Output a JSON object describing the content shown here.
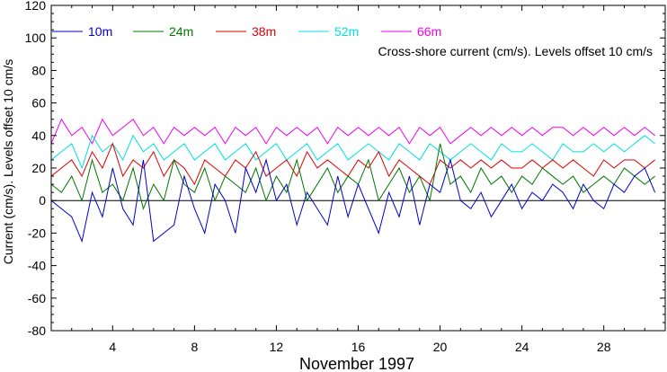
{
  "chart_data": {
    "type": "line",
    "annotation": "Cross-shore current (cm/s). Levels offset 10 cm/s",
    "xlabel": "November 1997",
    "ylabel": "Current (cm/s). Levels offset 10 cm/s",
    "xlim": [
      1,
      31
    ],
    "ylim": [
      -80,
      120
    ],
    "x_ticks": [
      4,
      8,
      12,
      16,
      20,
      24,
      28
    ],
    "y_ticks": [
      -80,
      -60,
      -40,
      -20,
      0,
      20,
      40,
      60,
      80,
      100,
      120
    ],
    "zero_line": 0,
    "x": [
      1,
      1.5,
      2,
      2.5,
      3,
      3.5,
      4,
      4.5,
      5,
      5.5,
      6,
      6.5,
      7,
      7.5,
      8,
      8.5,
      9,
      9.5,
      10,
      10.5,
      11,
      11.5,
      12,
      12.5,
      13,
      13.5,
      14,
      14.5,
      15,
      15.5,
      16,
      16.5,
      17,
      17.5,
      18,
      18.5,
      19,
      19.5,
      20,
      20.5,
      21,
      21.5,
      22,
      22.5,
      23,
      23.5,
      24,
      24.5,
      25,
      25.5,
      26,
      26.5,
      27,
      27.5,
      28,
      28.5,
      29,
      29.5,
      30,
      30.5
    ],
    "series": [
      {
        "name": "10m",
        "color": "#0000cc",
        "values": [
          0,
          -5,
          -10,
          -25,
          5,
          -10,
          20,
          -5,
          -15,
          25,
          -25,
          -20,
          -15,
          15,
          -5,
          -20,
          10,
          0,
          -20,
          20,
          5,
          25,
          0,
          10,
          -15,
          5,
          -5,
          -15,
          15,
          -10,
          10,
          -5,
          -20,
          5,
          -10,
          15,
          -15,
          10,
          5,
          25,
          0,
          -5,
          5,
          -10,
          0,
          10,
          -5,
          5,
          0,
          10,
          5,
          -5,
          10,
          0,
          -5,
          10,
          5,
          15,
          20,
          5
        ]
      },
      {
        "name": "24m",
        "color": "#007700",
        "values": [
          10,
          5,
          15,
          0,
          25,
          5,
          10,
          0,
          20,
          -5,
          10,
          0,
          25,
          10,
          5,
          20,
          0,
          15,
          10,
          5,
          20,
          0,
          15,
          5,
          25,
          0,
          10,
          20,
          5,
          15,
          10,
          25,
          0,
          10,
          20,
          5,
          15,
          0,
          35,
          10,
          15,
          5,
          20,
          10,
          15,
          5,
          15,
          10,
          20,
          15,
          10,
          15,
          5,
          10,
          15,
          10,
          20,
          15,
          10,
          15
        ]
      },
      {
        "name": "38m",
        "color": "#dd0000",
        "values": [
          15,
          20,
          25,
          15,
          30,
          20,
          35,
          15,
          25,
          20,
          30,
          15,
          25,
          20,
          10,
          25,
          20,
          15,
          25,
          20,
          30,
          15,
          20,
          25,
          15,
          30,
          20,
          25,
          20,
          15,
          25,
          20,
          30,
          15,
          25,
          20,
          15,
          10,
          25,
          20,
          25,
          20,
          25,
          20,
          25,
          20,
          20,
          25,
          20,
          25,
          20,
          25,
          20,
          15,
          25,
          20,
          25,
          25,
          20,
          25
        ]
      },
      {
        "name": "52m",
        "color": "#00e0e0",
        "values": [
          25,
          30,
          35,
          20,
          40,
          30,
          35,
          25,
          40,
          30,
          35,
          25,
          30,
          35,
          25,
          30,
          35,
          25,
          30,
          35,
          25,
          30,
          35,
          25,
          30,
          35,
          25,
          30,
          35,
          25,
          30,
          35,
          30,
          25,
          35,
          30,
          25,
          35,
          30,
          25,
          30,
          35,
          30,
          25,
          35,
          30,
          30,
          35,
          30,
          25,
          35,
          30,
          30,
          35,
          30,
          35,
          30,
          35,
          40,
          35
        ]
      },
      {
        "name": "66m",
        "color": "#ee00ee",
        "values": [
          35,
          50,
          40,
          45,
          35,
          50,
          40,
          45,
          50,
          40,
          45,
          35,
          45,
          40,
          45,
          40,
          45,
          35,
          45,
          40,
          45,
          35,
          45,
          40,
          45,
          40,
          45,
          35,
          45,
          40,
          45,
          40,
          45,
          40,
          45,
          35,
          45,
          40,
          45,
          35,
          40,
          45,
          40,
          45,
          40,
          45,
          40,
          45,
          40,
          45,
          45,
          40,
          45,
          40,
          45,
          40,
          45,
          40,
          45,
          40
        ]
      }
    ]
  }
}
